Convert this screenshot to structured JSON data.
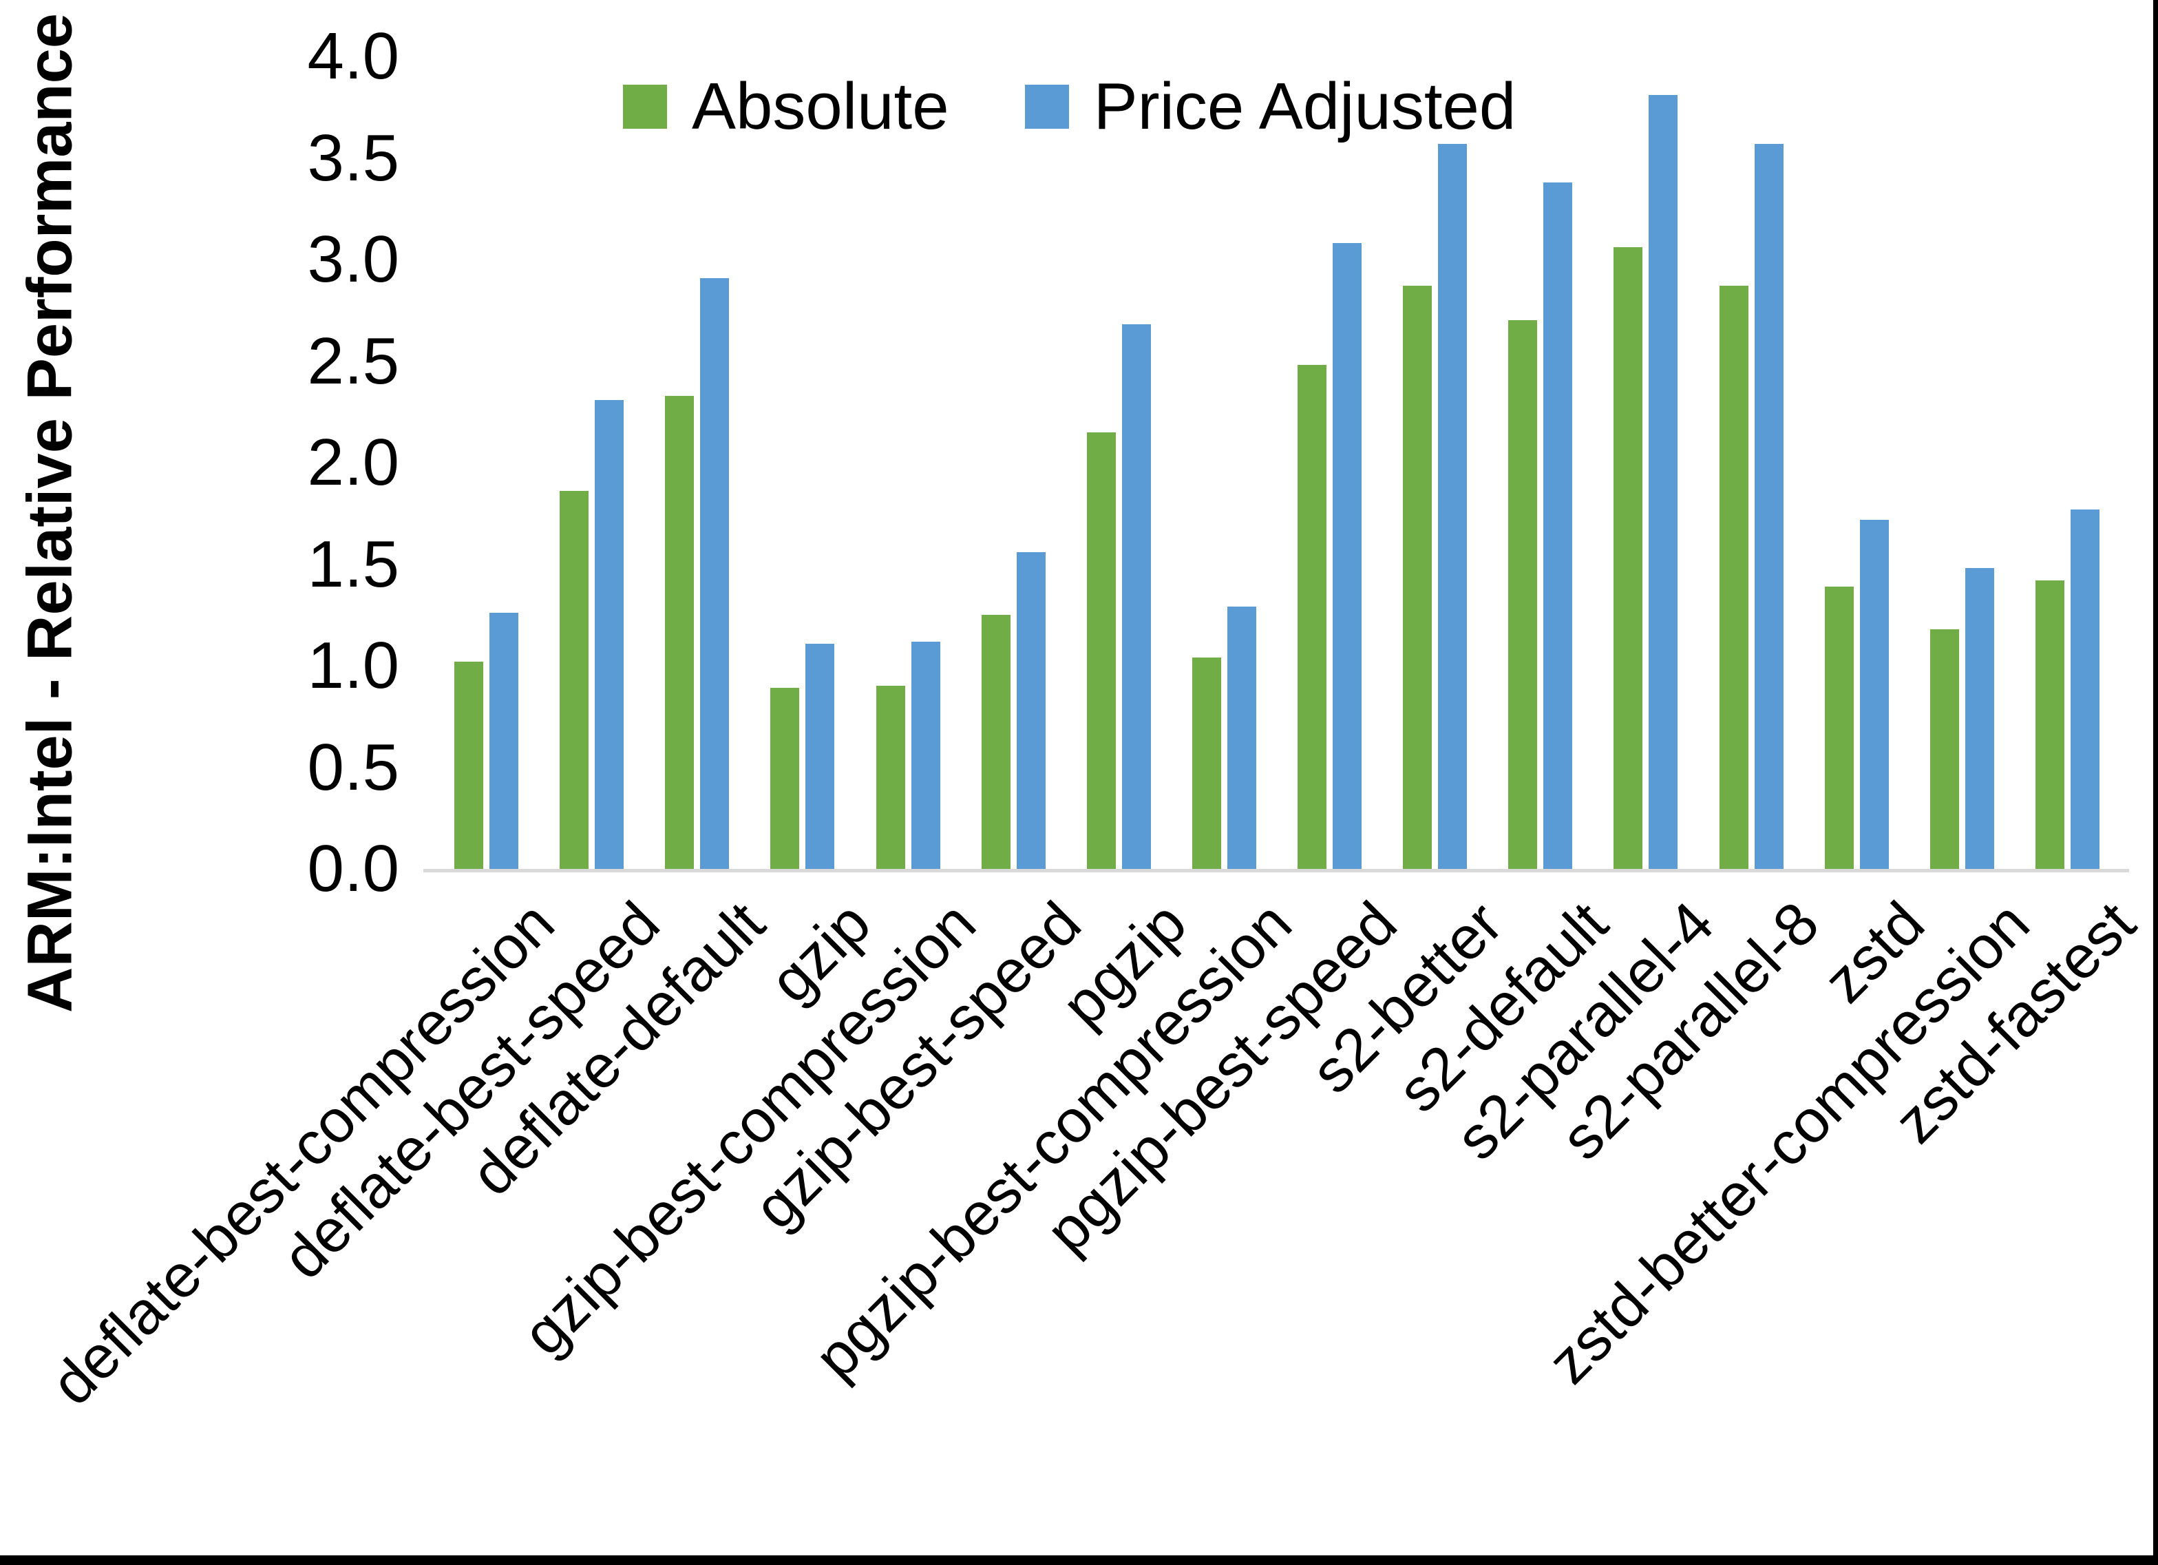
{
  "page": {
    "background": "#FFFFFF",
    "frame_color": "#000000"
  },
  "chart_data": {
    "type": "bar",
    "title": "",
    "xlabel": "",
    "ylabel": "ARM:Intel - Relative Performance",
    "ylim": [
      0.0,
      4.0
    ],
    "ytick_step": 0.5,
    "yticks": [
      "0.0",
      "0.5",
      "1.0",
      "1.5",
      "2.0",
      "2.5",
      "3.0",
      "3.5",
      "4.0"
    ],
    "grid": false,
    "legend_position": "top",
    "axis_line_color": "#D9D9D9",
    "text_color": "#000000",
    "categories": [
      "deflate-best-compression",
      "deflate-best-speed",
      "deflate-default",
      "gzip",
      "gzip-best-compression",
      "gzip-best-speed",
      "pgzip",
      "pgzip-best-compression",
      "pgzip-best-speed",
      "s2-better",
      "s2-default",
      "s2-parallel-4",
      "s2-parallel-8",
      "zstd",
      "zstd-better-compression",
      "zstd-fastest"
    ],
    "series": [
      {
        "name": "Absolute",
        "color": "#70AD47",
        "values": [
          1.02,
          1.86,
          2.33,
          0.89,
          0.9,
          1.25,
          2.15,
          1.04,
          2.48,
          2.87,
          2.7,
          3.06,
          2.87,
          1.39,
          1.18,
          1.42
        ]
      },
      {
        "name": "Price Adjusted",
        "color": "#5B9BD5",
        "values": [
          1.26,
          2.31,
          2.91,
          1.11,
          1.12,
          1.56,
          2.68,
          1.29,
          3.08,
          3.57,
          3.38,
          3.81,
          3.57,
          1.72,
          1.48,
          1.77
        ]
      }
    ]
  }
}
